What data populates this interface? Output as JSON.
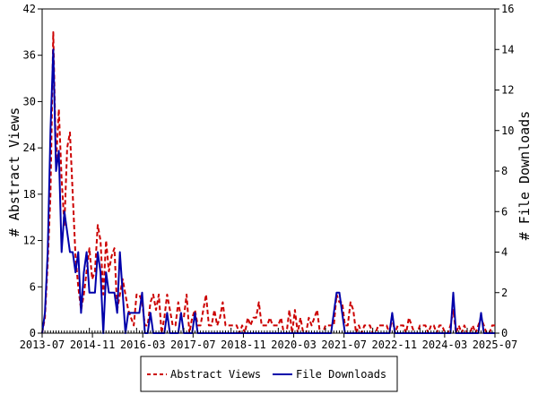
{
  "chart_data": {
    "type": "line",
    "x_ticks": [
      "2013-07",
      "2014-11",
      "2016-03",
      "2017-07",
      "2018-11",
      "2020-03",
      "2021-07",
      "2022-11",
      "2024-03",
      "2025-07"
    ],
    "y_left": {
      "label": "# Abstract Views",
      "range": [
        0,
        42
      ],
      "ticks": [
        0,
        6,
        12,
        18,
        24,
        30,
        36,
        42
      ]
    },
    "y_right": {
      "label": "# File Downloads",
      "range": [
        0,
        16
      ],
      "ticks": [
        0,
        2,
        4,
        6,
        8,
        10,
        12,
        14,
        16
      ]
    },
    "legend": {
      "placement": "bottom"
    },
    "series": [
      {
        "name": "Abstract Views",
        "axis": "left",
        "color": "#cc0000",
        "style": "dashed",
        "points": [
          [
            0,
            0
          ],
          [
            1,
            2
          ],
          [
            2,
            9
          ],
          [
            3,
            18
          ],
          [
            4,
            39
          ],
          [
            5,
            22
          ],
          [
            6,
            29
          ],
          [
            7,
            20
          ],
          [
            8,
            14
          ],
          [
            9,
            24
          ],
          [
            10,
            26
          ],
          [
            11,
            18
          ],
          [
            12,
            10
          ],
          [
            13,
            6
          ],
          [
            14,
            3
          ],
          [
            15,
            5
          ],
          [
            16,
            8
          ],
          [
            17,
            11
          ],
          [
            18,
            7
          ],
          [
            19,
            8
          ],
          [
            20,
            14
          ],
          [
            21,
            12
          ],
          [
            22,
            5
          ],
          [
            23,
            12
          ],
          [
            24,
            8
          ],
          [
            25,
            10
          ],
          [
            26,
            11
          ],
          [
            27,
            3
          ],
          [
            28,
            5
          ],
          [
            29,
            7
          ],
          [
            30,
            5
          ],
          [
            31,
            3
          ],
          [
            32,
            2
          ],
          [
            33,
            1
          ],
          [
            34,
            5
          ],
          [
            35,
            5
          ],
          [
            36,
            4
          ],
          [
            37,
            1
          ],
          [
            38,
            1
          ],
          [
            39,
            4
          ],
          [
            40,
            5
          ],
          [
            41,
            3
          ],
          [
            42,
            5
          ],
          [
            43,
            0
          ],
          [
            44,
            2
          ],
          [
            45,
            5
          ],
          [
            46,
            3
          ],
          [
            47,
            1
          ],
          [
            48,
            1
          ],
          [
            49,
            4
          ],
          [
            50,
            2
          ],
          [
            51,
            2
          ],
          [
            52,
            5
          ],
          [
            53,
            0
          ],
          [
            54,
            2
          ],
          [
            55,
            3
          ],
          [
            56,
            1
          ],
          [
            57,
            1
          ],
          [
            58,
            3
          ],
          [
            59,
            5
          ],
          [
            60,
            1
          ],
          [
            61,
            1
          ],
          [
            62,
            3
          ],
          [
            63,
            1
          ],
          [
            64,
            2
          ],
          [
            65,
            4
          ],
          [
            66,
            1
          ],
          [
            67,
            1
          ],
          [
            68,
            1
          ],
          [
            69,
            1
          ],
          [
            70,
            1
          ],
          [
            71,
            0
          ],
          [
            72,
            1
          ],
          [
            73,
            0
          ],
          [
            74,
            2
          ],
          [
            75,
            1
          ],
          [
            76,
            2
          ],
          [
            77,
            2
          ],
          [
            78,
            4
          ],
          [
            79,
            1
          ],
          [
            80,
            1
          ],
          [
            81,
            1
          ],
          [
            82,
            2
          ],
          [
            83,
            1
          ],
          [
            84,
            1
          ],
          [
            85,
            1
          ],
          [
            86,
            2
          ],
          [
            87,
            0
          ],
          [
            88,
            0
          ],
          [
            89,
            3
          ],
          [
            90,
            0
          ],
          [
            91,
            3
          ],
          [
            92,
            0
          ],
          [
            93,
            2
          ],
          [
            94,
            0
          ],
          [
            95,
            0
          ],
          [
            96,
            2
          ],
          [
            97,
            1
          ],
          [
            98,
            2
          ],
          [
            99,
            3
          ],
          [
            100,
            0
          ],
          [
            101,
            0
          ],
          [
            102,
            1
          ],
          [
            103,
            1
          ],
          [
            104,
            1
          ],
          [
            105,
            1
          ],
          [
            106,
            5
          ],
          [
            107,
            4
          ],
          [
            108,
            4
          ],
          [
            109,
            1
          ],
          [
            110,
            1
          ],
          [
            111,
            4
          ],
          [
            112,
            3
          ],
          [
            113,
            0
          ],
          [
            114,
            1
          ],
          [
            115,
            0
          ],
          [
            116,
            1
          ],
          [
            117,
            1
          ],
          [
            118,
            1
          ],
          [
            119,
            0
          ],
          [
            120,
            0
          ],
          [
            121,
            1
          ],
          [
            122,
            1
          ],
          [
            123,
            1
          ],
          [
            124,
            1
          ],
          [
            125,
            0
          ],
          [
            126,
            2
          ],
          [
            127,
            0
          ],
          [
            128,
            1
          ],
          [
            129,
            1
          ],
          [
            130,
            1
          ],
          [
            131,
            0
          ],
          [
            132,
            2
          ],
          [
            133,
            1
          ],
          [
            134,
            0
          ],
          [
            135,
            0
          ],
          [
            136,
            1
          ],
          [
            137,
            1
          ],
          [
            138,
            1
          ],
          [
            139,
            0
          ],
          [
            140,
            1
          ],
          [
            141,
            1
          ],
          [
            142,
            0
          ],
          [
            143,
            1
          ],
          [
            144,
            1
          ],
          [
            145,
            0
          ],
          [
            146,
            0
          ],
          [
            147,
            1
          ],
          [
            148,
            3
          ],
          [
            149,
            0
          ],
          [
            150,
            1
          ],
          [
            151,
            0
          ],
          [
            152,
            1
          ],
          [
            153,
            0
          ],
          [
            154,
            0
          ],
          [
            155,
            1
          ],
          [
            156,
            0
          ],
          [
            157,
            1
          ],
          [
            158,
            2
          ],
          [
            159,
            1
          ],
          [
            160,
            0
          ],
          [
            161,
            0
          ],
          [
            162,
            1
          ],
          [
            163,
            1
          ]
        ]
      },
      {
        "name": "File Downloads",
        "axis": "right",
        "color": "#0000aa",
        "style": "solid",
        "points": [
          [
            0,
            0
          ],
          [
            1,
            1
          ],
          [
            2,
            4
          ],
          [
            3,
            10
          ],
          [
            4,
            14
          ],
          [
            5,
            8
          ],
          [
            6,
            9
          ],
          [
            7,
            4
          ],
          [
            8,
            6
          ],
          [
            9,
            5
          ],
          [
            10,
            4
          ],
          [
            11,
            4
          ],
          [
            12,
            3
          ],
          [
            13,
            4
          ],
          [
            14,
            1
          ],
          [
            15,
            3
          ],
          [
            16,
            4
          ],
          [
            17,
            2
          ],
          [
            18,
            2
          ],
          [
            19,
            2
          ],
          [
            20,
            4
          ],
          [
            21,
            3
          ],
          [
            22,
            0
          ],
          [
            23,
            3
          ],
          [
            24,
            2
          ],
          [
            25,
            2
          ],
          [
            26,
            2
          ],
          [
            27,
            1
          ],
          [
            28,
            4
          ],
          [
            29,
            2
          ],
          [
            30,
            0
          ],
          [
            31,
            1
          ],
          [
            32,
            1
          ],
          [
            33,
            1
          ],
          [
            34,
            1
          ],
          [
            35,
            1
          ],
          [
            36,
            2
          ],
          [
            37,
            0
          ],
          [
            38,
            0
          ],
          [
            39,
            1
          ],
          [
            40,
            0
          ],
          [
            41,
            0
          ],
          [
            42,
            0
          ],
          [
            43,
            0
          ],
          [
            44,
            0
          ],
          [
            45,
            1
          ],
          [
            46,
            0
          ],
          [
            47,
            0
          ],
          [
            48,
            0
          ],
          [
            49,
            0
          ],
          [
            50,
            1
          ],
          [
            51,
            0
          ],
          [
            52,
            0
          ],
          [
            53,
            0
          ],
          [
            54,
            0
          ],
          [
            55,
            1
          ],
          [
            56,
            0
          ],
          [
            57,
            0
          ],
          [
            58,
            0
          ],
          [
            59,
            0
          ],
          [
            60,
            0
          ],
          [
            61,
            0
          ],
          [
            62,
            0
          ],
          [
            63,
            0
          ],
          [
            64,
            0
          ],
          [
            65,
            0
          ],
          [
            66,
            0
          ],
          [
            67,
            0
          ],
          [
            68,
            0
          ],
          [
            69,
            0
          ],
          [
            70,
            0
          ],
          [
            71,
            0
          ],
          [
            72,
            0
          ],
          [
            73,
            0
          ],
          [
            74,
            0
          ],
          [
            75,
            0
          ],
          [
            76,
            0
          ],
          [
            77,
            0
          ],
          [
            78,
            0
          ],
          [
            79,
            0
          ],
          [
            80,
            0
          ],
          [
            81,
            0
          ],
          [
            82,
            0
          ],
          [
            83,
            0
          ],
          [
            84,
            0
          ],
          [
            85,
            0
          ],
          [
            86,
            0
          ],
          [
            87,
            0
          ],
          [
            88,
            0
          ],
          [
            89,
            0
          ],
          [
            90,
            0
          ],
          [
            91,
            0
          ],
          [
            92,
            0
          ],
          [
            93,
            0
          ],
          [
            94,
            0
          ],
          [
            95,
            0
          ],
          [
            96,
            0
          ],
          [
            97,
            0
          ],
          [
            98,
            0
          ],
          [
            99,
            0
          ],
          [
            100,
            0
          ],
          [
            101,
            0
          ],
          [
            102,
            0
          ],
          [
            103,
            0
          ],
          [
            104,
            0
          ],
          [
            105,
            1
          ],
          [
            106,
            2
          ],
          [
            107,
            2
          ],
          [
            108,
            1
          ],
          [
            109,
            0
          ],
          [
            110,
            0
          ],
          [
            111,
            0
          ],
          [
            112,
            0
          ],
          [
            113,
            0
          ],
          [
            114,
            0
          ],
          [
            115,
            0
          ],
          [
            116,
            0
          ],
          [
            117,
            0
          ],
          [
            118,
            0
          ],
          [
            119,
            0
          ],
          [
            120,
            0
          ],
          [
            121,
            0
          ],
          [
            122,
            0
          ],
          [
            123,
            0
          ],
          [
            124,
            0
          ],
          [
            125,
            0
          ],
          [
            126,
            1
          ],
          [
            127,
            0
          ],
          [
            128,
            0
          ],
          [
            129,
            0
          ],
          [
            130,
            0
          ],
          [
            131,
            0
          ],
          [
            132,
            0
          ],
          [
            133,
            0
          ],
          [
            134,
            0
          ],
          [
            135,
            0
          ],
          [
            136,
            0
          ],
          [
            137,
            0
          ],
          [
            138,
            0
          ],
          [
            139,
            0
          ],
          [
            140,
            0
          ],
          [
            141,
            0
          ],
          [
            142,
            0
          ],
          [
            143,
            0
          ],
          [
            144,
            0
          ],
          [
            145,
            0
          ],
          [
            146,
            0
          ],
          [
            147,
            0
          ],
          [
            148,
            2
          ],
          [
            149,
            0
          ],
          [
            150,
            0
          ],
          [
            151,
            0
          ],
          [
            152,
            0
          ],
          [
            153,
            0
          ],
          [
            154,
            0
          ],
          [
            155,
            0
          ],
          [
            156,
            0
          ],
          [
            157,
            0
          ],
          [
            158,
            1
          ],
          [
            159,
            0
          ],
          [
            160,
            0
          ],
          [
            161,
            0
          ],
          [
            162,
            0
          ],
          [
            163,
            0
          ]
        ]
      }
    ]
  }
}
